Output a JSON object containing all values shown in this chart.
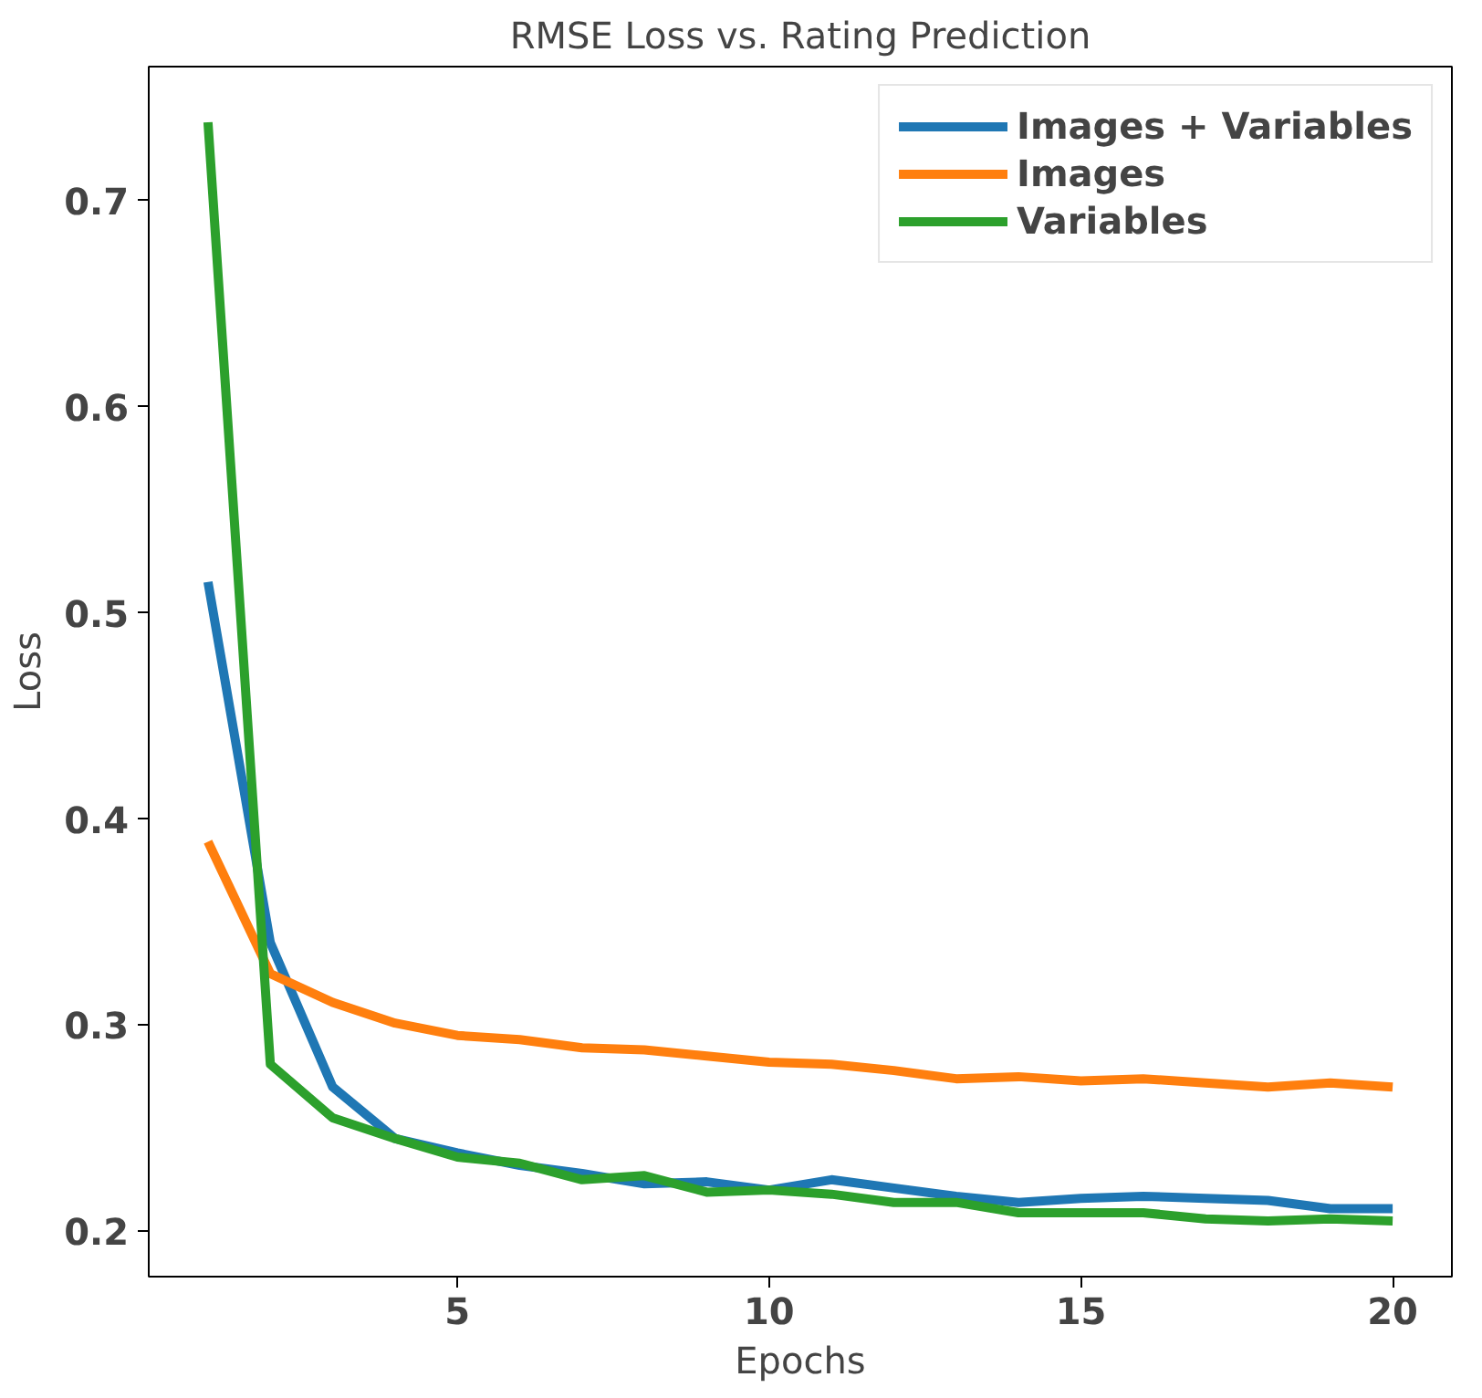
{
  "chart_data": {
    "type": "line",
    "title": "RMSE Loss vs. Rating Prediction",
    "xlabel": "Epochs",
    "ylabel": "Loss",
    "x": [
      1,
      2,
      3,
      4,
      5,
      6,
      7,
      8,
      9,
      10,
      11,
      12,
      13,
      14,
      15,
      16,
      17,
      18,
      19,
      20
    ],
    "xlim": [
      0.05,
      20.95
    ],
    "xticks": [
      5,
      10,
      15,
      20
    ],
    "ylim": [
      0.178,
      0.765
    ],
    "yticks": [
      0.2,
      0.3,
      0.4,
      0.5,
      0.6,
      0.7
    ],
    "grid": false,
    "legend": "top right",
    "marker": "none",
    "line_style": "solid",
    "series": [
      {
        "name": "Images + Variables",
        "color": "#1f77b4",
        "values": [
          0.515,
          0.34,
          0.27,
          0.245,
          0.238,
          0.232,
          0.228,
          0.223,
          0.224,
          0.22,
          0.225,
          0.221,
          0.217,
          0.214,
          0.216,
          0.217,
          0.216,
          0.215,
          0.211,
          0.211
        ]
      },
      {
        "name": "Images",
        "color": "#ff7f0e",
        "values": [
          0.389,
          0.325,
          0.311,
          0.301,
          0.295,
          0.293,
          0.289,
          0.288,
          0.285,
          0.282,
          0.281,
          0.278,
          0.274,
          0.275,
          0.273,
          0.274,
          0.272,
          0.27,
          0.272,
          0.27
        ]
      },
      {
        "name": "Variables",
        "color": "#2ca02c",
        "values": [
          0.738,
          0.281,
          0.255,
          0.245,
          0.236,
          0.233,
          0.225,
          0.227,
          0.219,
          0.22,
          0.218,
          0.214,
          0.214,
          0.209,
          0.209,
          0.209,
          0.206,
          0.205,
          0.206,
          0.205
        ]
      }
    ]
  }
}
